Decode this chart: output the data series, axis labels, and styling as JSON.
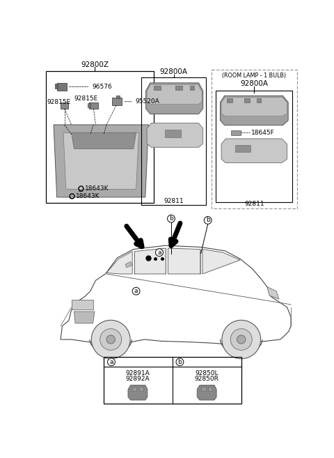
{
  "bg_color": "#ffffff",
  "text_color": "#000000",
  "part_gray": "#888888",
  "part_light": "#b8b8b8",
  "part_dark": "#707070",
  "border_color": "#000000",
  "dashed_color": "#888888",
  "labels": {
    "main_label": "92800Z",
    "center_label": "92800A",
    "room_lamp_title": "(ROOM LAMP - 1 BULB)",
    "room_lamp_label": "92800A",
    "p96576": "96576",
    "p92815E_1": "92815E",
    "p92815E_2": "92815E",
    "p95520A": "95520A",
    "p18643K_1": "18643K",
    "p18643K_2": "18643K",
    "p92811_1": "92811",
    "p92811_2": "92811",
    "p18645F": "18645F",
    "p92891A": "92891A",
    "p92892A": "92892A",
    "p92850L": "92850L",
    "p92850R": "92850R",
    "label_a": "a",
    "label_b": "b"
  }
}
